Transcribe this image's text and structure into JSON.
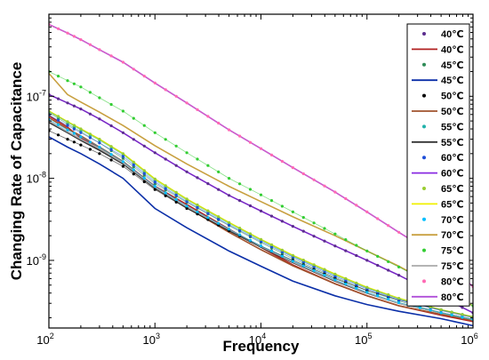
{
  "chart_data": {
    "type": "line",
    "xlabel": "Frequency",
    "ylabel": "Changing Rate of Capacitance",
    "xscale": "log",
    "yscale": "log",
    "xlim": [
      100,
      1000000
    ],
    "ylim": [
      1.5e-10,
      1e-06
    ],
    "grid": false,
    "legend_position": "top-right",
    "x_tick_labels": [
      {
        "base": "10",
        "exp": "2"
      },
      {
        "base": "10",
        "exp": "3"
      },
      {
        "base": "10",
        "exp": "4"
      },
      {
        "base": "10",
        "exp": "5"
      },
      {
        "base": "10",
        "exp": "6"
      }
    ],
    "y_tick_labels": [
      {
        "base": "10",
        "exp": "-7"
      },
      {
        "base": "10",
        "exp": "-8"
      },
      {
        "base": "10",
        "exp": "-9"
      }
    ],
    "x": [
      100,
      150,
      200,
      300,
      500,
      1000,
      2000,
      5000,
      10000,
      20000,
      50000,
      100000,
      200000,
      500000,
      1000000
    ],
    "series": [
      {
        "name": "40℃",
        "kind": "dots",
        "color": "#5b2d8e",
        "values": [
          1.05e-07,
          8.3e-08,
          7e-08,
          5.3e-08,
          3.6e-08,
          2.05e-08,
          1.2e-08,
          6.2e-09,
          4e-09,
          2.6e-09,
          1.5e-09,
          1e-09,
          6.6e-10,
          3.6e-10,
          2.3e-10
        ]
      },
      {
        "name": "40℃",
        "kind": "line",
        "color": "#b22222",
        "values": [
          5.8e-08,
          4.2e-08,
          3.1e-08,
          2.4e-08,
          1.6e-08,
          8e-09,
          4.8e-09,
          2.4e-09,
          1.45e-09,
          8.8e-10,
          5.2e-10,
          3.7e-10,
          2.8e-10,
          2.15e-10,
          1.8e-10
        ]
      },
      {
        "name": "45℃",
        "kind": "dots",
        "color": "#2e8b57",
        "values": [
          6.3e-08,
          4.6e-08,
          3.7e-08,
          2.7e-08,
          1.75e-08,
          8.6e-09,
          5.1e-09,
          2.65e-09,
          1.65e-09,
          1.05e-09,
          6.2e-10,
          4.3e-10,
          3.2e-10,
          2.3e-10,
          1.9e-10
        ]
      },
      {
        "name": "45℃",
        "kind": "line",
        "color": "#0b2fa8",
        "values": [
          3.2e-08,
          2.4e-08,
          2e-08,
          1.5e-08,
          1e-08,
          4.3e-09,
          2.5e-09,
          1.3e-09,
          8.5e-10,
          5.6e-10,
          3.7e-10,
          2.9e-10,
          2.4e-10,
          1.95e-10,
          1.6e-10
        ]
      },
      {
        "name": "50℃",
        "kind": "dots",
        "color": "#000000",
        "values": [
          3.8e-08,
          3e-08,
          2.55e-08,
          2e-08,
          1.4e-08,
          7.3e-09,
          4.3e-09,
          2.3e-09,
          1.5e-09,
          1e-09,
          6e-10,
          4.3e-10,
          3.3e-10,
          2.5e-10,
          2.05e-10
        ]
      },
      {
        "name": "50℃",
        "kind": "line",
        "color": "#a0522d",
        "values": [
          5.5e-08,
          4e-08,
          3.3e-08,
          2.4e-08,
          1.6e-08,
          7.6e-09,
          4.4e-09,
          2.2e-09,
          1.35e-09,
          8.6e-10,
          5.2e-10,
          3.7e-10,
          2.8e-10,
          2.2e-10,
          1.85e-10
        ]
      },
      {
        "name": "55℃",
        "kind": "dots",
        "color": "#20b2aa",
        "values": [
          6.5e-08,
          4.8e-08,
          3.9e-08,
          2.9e-08,
          1.95e-08,
          9.4e-09,
          5.4e-09,
          2.8e-09,
          1.75e-09,
          1.12e-09,
          6.6e-10,
          4.6e-10,
          3.4e-10,
          2.5e-10,
          2.05e-10
        ]
      },
      {
        "name": "55℃",
        "kind": "line",
        "color": "#333333",
        "values": [
          4.8e-08,
          3.6e-08,
          2.9e-08,
          2.2e-08,
          1.5e-08,
          7.6e-09,
          4.4e-09,
          2.3e-09,
          1.45e-09,
          9.4e-10,
          5.6e-10,
          4e-10,
          3e-10,
          2.3e-10,
          1.9e-10
        ]
      },
      {
        "name": "60℃",
        "kind": "dots",
        "color": "#1f4fd8",
        "values": [
          5.9e-08,
          4.4e-08,
          3.6e-08,
          2.7e-08,
          1.85e-08,
          9e-09,
          5.2e-09,
          2.7e-09,
          1.7e-09,
          1.1e-09,
          6.4e-10,
          4.5e-10,
          3.3e-10,
          2.45e-10,
          2e-10
        ]
      },
      {
        "name": "60℃",
        "kind": "line",
        "color": "#8a2be2",
        "values": [
          1.05e-07,
          8.3e-08,
          7e-08,
          5.3e-08,
          3.6e-08,
          2.05e-08,
          1.2e-08,
          6.2e-09,
          4e-09,
          2.6e-09,
          1.5e-09,
          1e-09,
          6.6e-10,
          3.6e-10,
          2.3e-10
        ]
      },
      {
        "name": "65℃",
        "kind": "dots",
        "color": "#9acd32",
        "values": [
          6.6e-08,
          4.9e-08,
          4e-08,
          3e-08,
          2e-08,
          9.8e-09,
          5.6e-09,
          2.9e-09,
          1.8e-09,
          1.15e-09,
          6.8e-10,
          4.7e-10,
          3.45e-10,
          2.5e-10,
          2.05e-10
        ]
      },
      {
        "name": "65℃",
        "kind": "line",
        "color": "#f0f000",
        "values": [
          6.6e-08,
          4.9e-08,
          4e-08,
          3e-08,
          2e-08,
          9.8e-09,
          5.6e-09,
          2.9e-09,
          1.8e-09,
          1.15e-09,
          6.8e-10,
          4.7e-10,
          3.45e-10,
          2.5e-10,
          2.05e-10
        ]
      },
      {
        "name": "70℃",
        "kind": "dots",
        "color": "#00bfff",
        "values": [
          5.2e-08,
          3.9e-08,
          3.2e-08,
          2.4e-08,
          1.6e-08,
          8e-09,
          4.6e-09,
          2.4e-09,
          1.5e-09,
          9.8e-10,
          5.8e-10,
          4.1e-10,
          3.05e-10,
          2.3e-10,
          1.9e-10
        ]
      },
      {
        "name": "70℃",
        "kind": "line",
        "color": "#c8a040",
        "values": [
          1.9e-07,
          1.05e-07,
          8.5e-08,
          6.4e-08,
          4.4e-08,
          2.5e-08,
          1.5e-08,
          8e-09,
          5.2e-09,
          3.4e-09,
          2e-09,
          1.3e-09,
          8.5e-10,
          4.5e-10,
          2.8e-10
        ]
      },
      {
        "name": "75℃",
        "kind": "dots",
        "color": "#32cd32",
        "values": [
          2e-07,
          1.55e-07,
          1.3e-07,
          9.6e-08,
          6.6e-08,
          3.6e-08,
          2.05e-08,
          1e-08,
          6.3e-09,
          3.9e-09,
          2.1e-09,
          1.3e-09,
          8.3e-10,
          4.5e-10,
          2.8e-10
        ]
      },
      {
        "name": "75℃",
        "kind": "line",
        "color": "#a9a9a9",
        "values": [
          5e-08,
          3.7e-08,
          3e-08,
          2.3e-08,
          1.55e-08,
          7.8e-09,
          4.5e-09,
          2.35e-09,
          1.48e-09,
          9.6e-10,
          5.7e-10,
          4.05e-10,
          3e-10,
          2.3e-10,
          1.9e-10
        ]
      },
      {
        "name": "80℃",
        "kind": "dots",
        "color": "#ff69b4",
        "values": [
          7.5e-07,
          5.9e-07,
          4.9e-07,
          3.7e-07,
          2.6e-07,
          1.45e-07,
          8.3e-08,
          3.9e-08,
          2.3e-08,
          1.35e-08,
          6.8e-09,
          3.9e-09,
          2.2e-09,
          1.05e-09,
          4.8e-10
        ]
      },
      {
        "name": "80℃",
        "kind": "line",
        "color": "#b04fd8",
        "values": [
          7.5e-07,
          5.9e-07,
          4.9e-07,
          3.7e-07,
          2.6e-07,
          1.45e-07,
          8.3e-08,
          3.9e-08,
          2.3e-08,
          1.35e-08,
          6.8e-09,
          3.9e-09,
          2.2e-09,
          1.05e-09,
          4.8e-10
        ]
      }
    ]
  }
}
